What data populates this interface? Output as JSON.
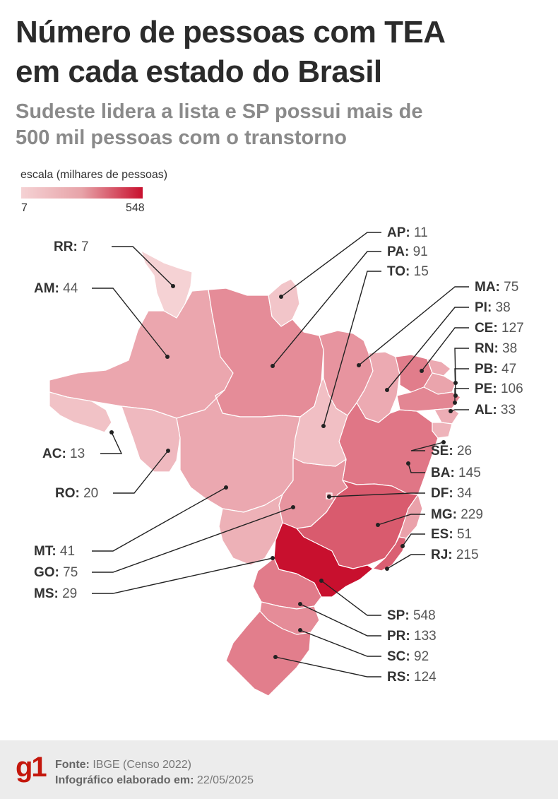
{
  "title": {
    "line1": "Número de pessoas com TEA",
    "line2": "em cada estado do Brasil"
  },
  "subtitle": {
    "line1": "Sudeste lidera a lista e SP possui mais de",
    "line2": "500 mil pessoas com o transtorno"
  },
  "legend": {
    "title": "escala (milhares de pessoas)",
    "min": "7",
    "max": "548"
  },
  "colors": {
    "low": "#f5d2d4",
    "high": "#c8102e",
    "border": "#ffffff",
    "leader": "#222222"
  },
  "map_data": {
    "unit": "milhares de pessoas",
    "states": [
      {
        "code": "RR",
        "value": 7
      },
      {
        "code": "AM",
        "value": 44
      },
      {
        "code": "AC",
        "value": 13
      },
      {
        "code": "RO",
        "value": 20
      },
      {
        "code": "MT",
        "value": 41
      },
      {
        "code": "GO",
        "value": 75
      },
      {
        "code": "MS",
        "value": 29
      },
      {
        "code": "AP",
        "value": 11
      },
      {
        "code": "PA",
        "value": 91
      },
      {
        "code": "TO",
        "value": 15
      },
      {
        "code": "MA",
        "value": 75
      },
      {
        "code": "PI",
        "value": 38
      },
      {
        "code": "CE",
        "value": 127
      },
      {
        "code": "RN",
        "value": 38
      },
      {
        "code": "PB",
        "value": 47
      },
      {
        "code": "PE",
        "value": 106
      },
      {
        "code": "AL",
        "value": 33
      },
      {
        "code": "SE",
        "value": 26
      },
      {
        "code": "BA",
        "value": 145
      },
      {
        "code": "DF",
        "value": 34
      },
      {
        "code": "MG",
        "value": 229
      },
      {
        "code": "ES",
        "value": 51
      },
      {
        "code": "RJ",
        "value": 215
      },
      {
        "code": "SP",
        "value": 548
      },
      {
        "code": "PR",
        "value": 133
      },
      {
        "code": "SC",
        "value": 92
      },
      {
        "code": "RS",
        "value": 124
      }
    ]
  },
  "footer": {
    "logo": "g1",
    "source_label": "Fonte:",
    "source_value": "IBGE (Censo 2022)",
    "date_label": "Infográfico elaborado em:",
    "date_value": "22/05/2025"
  }
}
